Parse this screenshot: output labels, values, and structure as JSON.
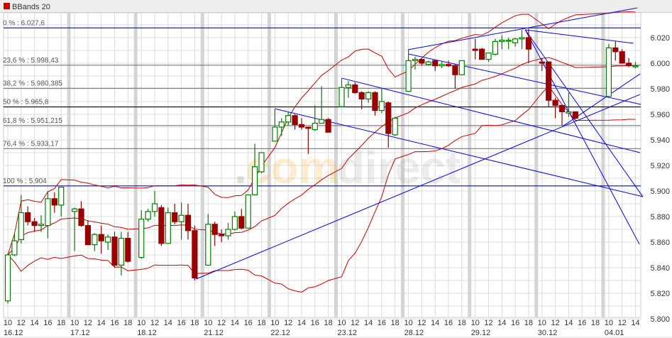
{
  "header": {
    "legend_label": "BBands 20",
    "legend_color": "#cc0000"
  },
  "watermark": {
    "text_dot": ".",
    "text_com": "com",
    "text_direct": "direct"
  },
  "chart_data": {
    "type": "candlestick",
    "indicator": "BBands 20",
    "ylim": [
      5.8,
      6.045
    ],
    "y_ticks": [
      "6.020",
      "6.000",
      "5.980",
      "5.960",
      "5.940",
      "5.920",
      "5.900",
      "5.880",
      "5.860",
      "5.840",
      "5.820",
      "5.800"
    ],
    "y_tick_values": [
      6.02,
      6.0,
      5.98,
      5.96,
      5.94,
      5.92,
      5.9,
      5.88,
      5.86,
      5.84,
      5.82,
      5.8
    ],
    "colors": {
      "up": "#008000",
      "down": "#990000",
      "bands": "#cc0000",
      "trendline": "#0000ff",
      "fib_major": "#0000ff",
      "fib_mid": "#000000",
      "fib_minor": "#777777"
    },
    "grid": true,
    "days": [
      {
        "date": "16.12",
        "hours": [
          "10",
          "12",
          "14",
          "16",
          "18"
        ],
        "candles": [
          [
            5.814,
            5.851,
            5.812,
            5.85
          ],
          [
            5.85,
            5.867,
            5.849,
            5.861
          ],
          [
            5.862,
            5.897,
            5.859,
            5.883
          ],
          [
            5.883,
            5.888,
            5.873,
            5.876
          ],
          [
            5.876,
            5.879,
            5.868,
            5.873
          ],
          [
            5.873,
            5.881,
            5.868,
            5.874
          ],
          [
            5.873,
            5.9,
            5.863,
            5.894
          ],
          [
            5.894,
            5.899,
            5.883,
            5.889
          ],
          [
            5.889,
            5.903,
            5.88,
            5.903
          ]
        ]
      },
      {
        "date": "17.12",
        "hours": [
          "10",
          "12",
          "14",
          "16",
          "18"
        ],
        "candles": [
          [
            5.884,
            5.887,
            5.853,
            5.886
          ],
          [
            5.886,
            5.892,
            5.872,
            5.873
          ],
          [
            5.873,
            5.877,
            5.858,
            5.858
          ],
          [
            5.858,
            5.867,
            5.853,
            5.866
          ],
          [
            5.866,
            5.873,
            5.851,
            5.861
          ],
          [
            5.86,
            5.866,
            5.854,
            5.864
          ],
          [
            5.864,
            5.868,
            5.84,
            5.842
          ],
          [
            5.842,
            5.868,
            5.834,
            5.863
          ],
          [
            5.863,
            5.868,
            5.844,
            5.845
          ]
        ]
      },
      {
        "date": "18.12",
        "hours": [
          "10",
          "12",
          "14",
          "16",
          "18"
        ],
        "candles": [
          [
            5.848,
            5.885,
            5.847,
            5.878
          ],
          [
            5.878,
            5.886,
            5.876,
            5.884
          ],
          [
            5.884,
            5.9,
            5.88,
            5.89
          ],
          [
            5.887,
            5.889,
            5.857,
            5.859
          ],
          [
            5.859,
            5.887,
            5.859,
            5.883
          ],
          [
            5.883,
            5.89,
            5.874,
            5.876
          ],
          [
            5.876,
            5.891,
            5.862,
            5.881
          ],
          [
            5.881,
            5.89,
            5.862,
            5.869
          ],
          [
            5.869,
            5.873,
            5.83,
            5.832
          ]
        ]
      },
      {
        "date": "21.12",
        "hours": [
          "10",
          "12",
          "14",
          "16",
          "18"
        ],
        "candles": [
          [
            5.842,
            5.882,
            5.842,
            5.874
          ],
          [
            5.874,
            5.876,
            5.857,
            5.866
          ],
          [
            5.866,
            5.87,
            5.86,
            5.865
          ],
          [
            5.865,
            5.875,
            5.862,
            5.87
          ],
          [
            5.87,
            5.884,
            5.869,
            5.88
          ],
          [
            5.88,
            5.886,
            5.87,
            5.871
          ],
          [
            5.871,
            5.897,
            5.871,
            5.897
          ],
          [
            5.897,
            5.937,
            5.897,
            5.919
          ],
          [
            5.915,
            5.93,
            5.914,
            5.93
          ]
        ]
      },
      {
        "date": "22.12",
        "hours": [
          "10",
          "12",
          "14",
          "16",
          "18"
        ],
        "candles": [
          [
            5.939,
            5.964,
            5.939,
            5.95
          ],
          [
            5.95,
            5.957,
            5.943,
            5.954
          ],
          [
            5.954,
            5.962,
            5.951,
            5.959
          ],
          [
            5.959,
            5.96,
            5.948,
            5.952
          ],
          [
            5.952,
            5.957,
            5.948,
            5.95
          ],
          [
            5.95,
            5.95,
            5.929,
            5.949
          ],
          [
            5.948,
            5.967,
            5.947,
            5.953
          ],
          [
            5.953,
            5.982,
            5.953,
            5.956
          ],
          [
            5.956,
            5.957,
            5.946,
            5.946
          ]
        ]
      },
      {
        "date": "23.12",
        "hours": [
          "10",
          "12",
          "14",
          "16",
          "18"
        ],
        "candles": [
          [
            5.966,
            5.988,
            5.966,
            5.981
          ],
          [
            5.981,
            5.986,
            5.973,
            5.983
          ],
          [
            5.983,
            5.985,
            5.976,
            5.977
          ],
          [
            5.977,
            5.978,
            5.964,
            5.972
          ],
          [
            5.972,
            5.978,
            5.969,
            5.977
          ],
          [
            5.977,
            5.978,
            5.959,
            5.963
          ],
          [
            5.963,
            5.98,
            5.961,
            5.97
          ],
          [
            5.969,
            5.97,
            5.934,
            5.945
          ],
          [
            5.944,
            5.958,
            5.943,
            5.957
          ]
        ]
      },
      {
        "date": "28.12",
        "hours": [
          "10",
          "12",
          "14",
          "16",
          "18"
        ],
        "candles": [
          [
            5.978,
            6.011,
            5.978,
            6.002
          ],
          [
            6.002,
            6.005,
            5.995,
            6.003
          ],
          [
            6.003,
            6.003,
            5.998,
            6.0
          ],
          [
            5.999,
            6.002,
            5.998,
            6.001
          ],
          [
            6.002,
            6.002,
            5.994,
            5.998
          ],
          [
            5.998,
            6.001,
            5.996,
            5.999
          ],
          [
            5.999,
            6.002,
            5.997,
            5.998
          ],
          [
            5.998,
            5.999,
            5.98,
            5.991
          ],
          [
            5.991,
            6.002,
            5.991,
            6.002
          ]
        ]
      },
      {
        "date": "29.12",
        "hours": [
          "10",
          "12",
          "14",
          "16",
          "18"
        ],
        "candles": [
          [
            6.011,
            6.019,
            6.003,
            6.01
          ],
          [
            6.011,
            6.012,
            6.003,
            6.003
          ],
          [
            6.003,
            6.008,
            6.001,
            6.008
          ],
          [
            6.007,
            6.019,
            6.006,
            6.017
          ],
          [
            6.017,
            6.022,
            6.011,
            6.018
          ],
          [
            6.018,
            6.02,
            6.011,
            6.018
          ],
          [
            6.016,
            6.02,
            6.013,
            6.019
          ],
          [
            6.019,
            6.026,
            6.011,
            6.02
          ],
          [
            6.02,
            6.027,
            6.0,
            6.011
          ]
        ]
      },
      {
        "date": "30.12",
        "hours": [
          "10",
          "12",
          "14",
          "16",
          "18"
        ],
        "candles": [
          [
            6.001,
            6.004,
            5.994,
            6.0
          ],
          [
            6.001,
            6.001,
            5.966,
            5.971
          ],
          [
            5.971,
            5.973,
            5.957,
            5.967
          ],
          [
            5.967,
            5.967,
            5.951,
            5.962
          ],
          [
            5.961,
            5.977,
            5.958,
            5.962
          ],
          [
            5.962,
            5.962,
            5.956,
            5.957
          ]
        ]
      },
      {
        "date": "04.01",
        "hours": [
          "10",
          "12",
          "14"
        ],
        "candles": [
          [
            5.974,
            6.015,
            5.974,
            6.012
          ],
          [
            6.012,
            6.017,
            6.002,
            6.009
          ],
          [
            6.009,
            6.011,
            6.0,
            6.0
          ],
          [
            6.0,
            6.004,
            5.997,
            5.998
          ],
          [
            5.998,
            6.001,
            5.996,
            5.998
          ]
        ]
      }
    ],
    "fibonacci": [
      {
        "label": "0 % : 6.027,6",
        "value": 6.0276,
        "level": "major"
      },
      {
        "label": "23,6 % : 5.998,43",
        "value": 5.99843,
        "level": "minor"
      },
      {
        "label": "38,2 % : 5.980,385",
        "value": 5.980385,
        "level": "minor"
      },
      {
        "label": "50 % : 5.965,8",
        "value": 5.9658,
        "level": "mid"
      },
      {
        "label": "61,8 % : 5.951,215",
        "value": 5.951215,
        "level": "minor"
      },
      {
        "label": "76,4 % : 5.933,17",
        "value": 5.93317,
        "level": "minor"
      },
      {
        "label": "100 % : 5.904",
        "value": 5.904,
        "level": "major"
      }
    ],
    "trendlines": [
      {
        "from": {
          "day": 6,
          "hour": 10,
          "price": 6.0106
        },
        "to": {
          "day": 9,
          "hour": 14.3,
          "price": 6.0433
        }
      },
      {
        "from": {
          "day": 7,
          "hour": 17.5,
          "price": 6.0261
        },
        "to": {
          "day": 9,
          "hour": 13.7,
          "price": 6.0156
        }
      },
      {
        "from": {
          "day": 7,
          "hour": 17.5,
          "price": 6.0261
        },
        "to": {
          "day": 9,
          "hour": 15.1,
          "price": 5.8956
        }
      },
      {
        "from": {
          "day": 7,
          "hour": 17.5,
          "price": 6.0261
        },
        "to": {
          "day": 9,
          "hour": 14.6,
          "price": 5.8583
        }
      },
      {
        "from": {
          "day": 6,
          "hour": 10,
          "price": 6.0072
        },
        "to": {
          "day": 9,
          "hour": 14.8,
          "price": 5.9678
        }
      },
      {
        "from": {
          "day": 5,
          "hour": 10,
          "price": 5.9883
        },
        "to": {
          "day": 9,
          "hour": 14.7,
          "price": 5.93
        }
      },
      {
        "from": {
          "day": 4,
          "hour": 10,
          "price": 5.9644
        },
        "to": {
          "day": 9,
          "hour": 15.1,
          "price": 5.8956
        }
      },
      {
        "from": {
          "day": 2,
          "hour": 18.2,
          "price": 5.8311
        },
        "to": {
          "day": 9,
          "hour": 14.7,
          "price": 5.9756
        }
      },
      {
        "from": {
          "day": 8,
          "hour": 13.1,
          "price": 5.9506
        },
        "to": {
          "day": 9,
          "hour": 14.7,
          "price": 5.9917
        }
      }
    ]
  }
}
